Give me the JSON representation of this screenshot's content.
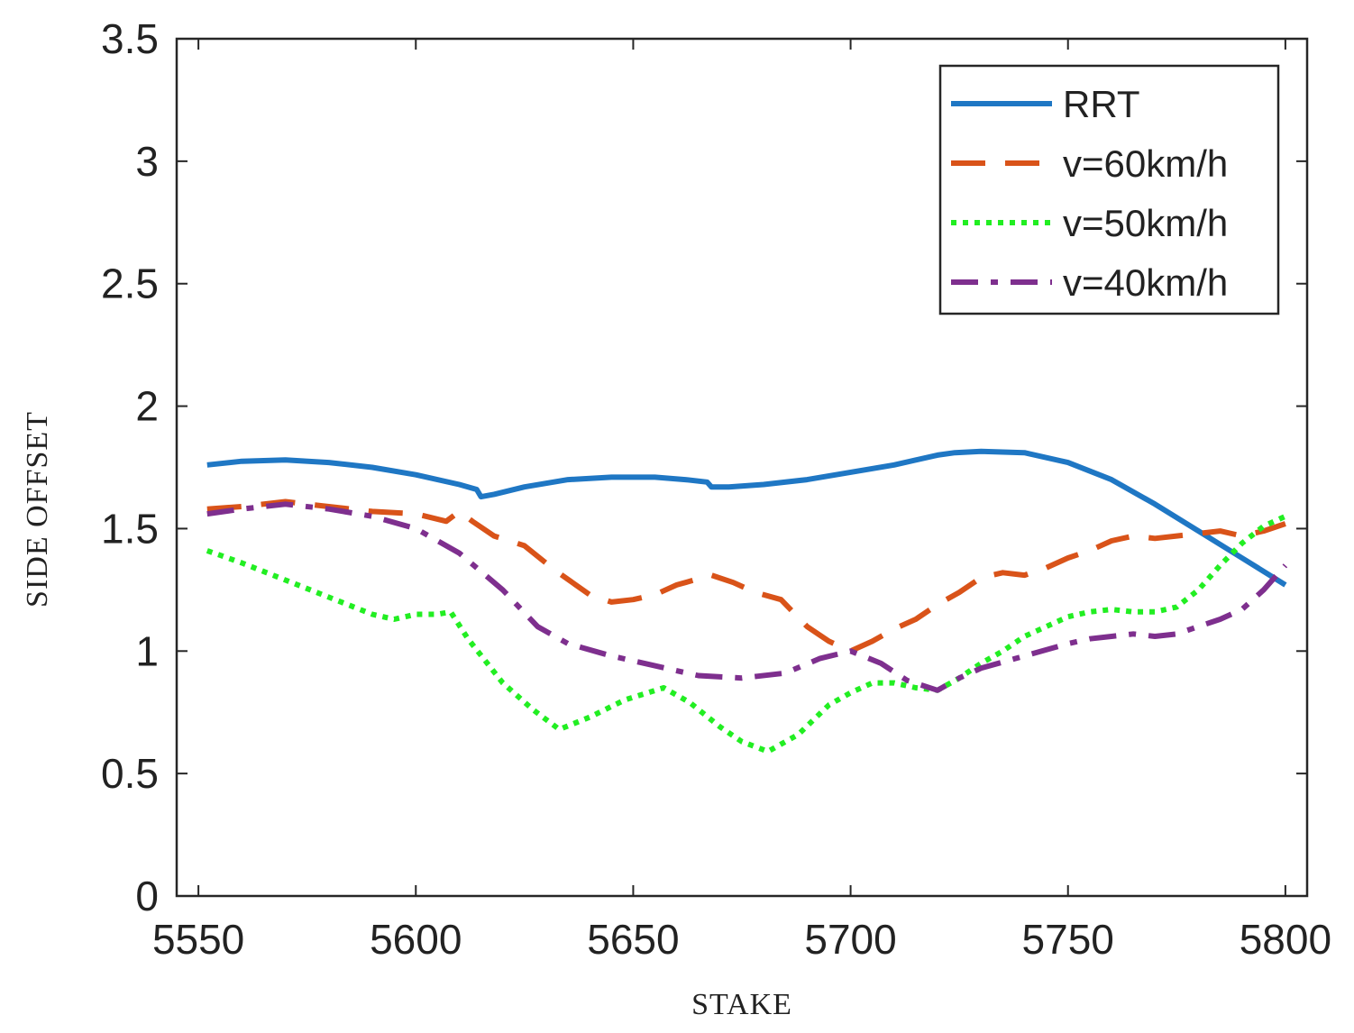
{
  "chart_data": {
    "type": "line",
    "title": "",
    "xlabel": "STAKE",
    "ylabel": "SIDE OFFSET",
    "xlim": [
      5545,
      5805
    ],
    "ylim": [
      0,
      3.5
    ],
    "xticks": [
      5550,
      5600,
      5650,
      5700,
      5750,
      5800
    ],
    "yticks": [
      0,
      0.5,
      1,
      1.5,
      2,
      2.5,
      3,
      3.5
    ],
    "xtick_labels": [
      "5550",
      "5600",
      "5650",
      "5700",
      "5750",
      "5800"
    ],
    "ytick_labels": [
      "0",
      "0.5",
      "1",
      "1.5",
      "2",
      "2.5",
      "3",
      "3.5"
    ],
    "grid": false,
    "legend_position": "top-right",
    "series": [
      {
        "name": "RRT",
        "color": "#1f77c4",
        "dash": "solid",
        "x": [
          5552,
          5560,
          5570,
          5580,
          5590,
          5600,
          5610,
          5614,
          5615,
          5618,
          5625,
          5635,
          5645,
          5655,
          5662,
          5667,
          5668,
          5672,
          5680,
          5690,
          5700,
          5710,
          5720,
          5724,
          5730,
          5740,
          5750,
          5760,
          5770,
          5780,
          5790,
          5800
        ],
        "y": [
          1.76,
          1.775,
          1.78,
          1.77,
          1.75,
          1.72,
          1.68,
          1.66,
          1.63,
          1.64,
          1.67,
          1.7,
          1.71,
          1.71,
          1.7,
          1.69,
          1.67,
          1.67,
          1.68,
          1.7,
          1.73,
          1.76,
          1.8,
          1.81,
          1.815,
          1.81,
          1.77,
          1.7,
          1.6,
          1.49,
          1.38,
          1.27
        ]
      },
      {
        "name": "v=60km/h",
        "color": "#d95319",
        "dash": "long",
        "x": [
          5552,
          5560,
          5570,
          5580,
          5590,
          5600,
          5607,
          5610,
          5613,
          5618,
          5625,
          5632,
          5640,
          5645,
          5650,
          5655,
          5660,
          5668,
          5673,
          5678,
          5684,
          5690,
          5695,
          5700,
          5705,
          5710,
          5715,
          5720,
          5725,
          5730,
          5735,
          5740,
          5745,
          5750,
          5755,
          5760,
          5765,
          5770,
          5775,
          5780,
          5785,
          5790,
          5795,
          5800
        ],
        "y": [
          1.58,
          1.59,
          1.61,
          1.59,
          1.57,
          1.56,
          1.53,
          1.57,
          1.53,
          1.47,
          1.43,
          1.33,
          1.23,
          1.2,
          1.21,
          1.23,
          1.27,
          1.31,
          1.28,
          1.24,
          1.21,
          1.1,
          1.04,
          1.0,
          1.04,
          1.09,
          1.13,
          1.19,
          1.24,
          1.3,
          1.32,
          1.31,
          1.34,
          1.38,
          1.41,
          1.45,
          1.47,
          1.46,
          1.47,
          1.48,
          1.49,
          1.47,
          1.49,
          1.52
        ]
      },
      {
        "name": "v=50km/h",
        "color": "#22ee22",
        "dash": "dotted",
        "x": [
          5552,
          5560,
          5570,
          5580,
          5590,
          5595,
          5600,
          5605,
          5608,
          5612,
          5620,
          5627,
          5633,
          5640,
          5648,
          5657,
          5663,
          5670,
          5675,
          5681,
          5688,
          5695,
          5700,
          5705,
          5710,
          5715,
          5720,
          5725,
          5730,
          5735,
          5740,
          5745,
          5750,
          5755,
          5760,
          5765,
          5770,
          5775,
          5780,
          5785,
          5790,
          5795,
          5800
        ],
        "y": [
          1.41,
          1.36,
          1.29,
          1.22,
          1.15,
          1.13,
          1.15,
          1.15,
          1.16,
          1.05,
          0.87,
          0.76,
          0.68,
          0.73,
          0.8,
          0.85,
          0.79,
          0.69,
          0.63,
          0.59,
          0.66,
          0.78,
          0.83,
          0.87,
          0.87,
          0.85,
          0.84,
          0.89,
          0.95,
          1.0,
          1.06,
          1.1,
          1.14,
          1.16,
          1.17,
          1.16,
          1.16,
          1.18,
          1.25,
          1.35,
          1.44,
          1.51,
          1.55
        ]
      },
      {
        "name": "v=40km/h",
        "color": "#7e2f8e",
        "dash": "dashdot",
        "x": [
          5552,
          5560,
          5570,
          5580,
          5590,
          5600,
          5610,
          5620,
          5628,
          5635,
          5645,
          5655,
          5665,
          5675,
          5685,
          5693,
          5700,
          5707,
          5713,
          5720,
          5725,
          5730,
          5740,
          5750,
          5755,
          5760,
          5765,
          5770,
          5775,
          5780,
          5785,
          5790,
          5795,
          5800
        ],
        "y": [
          1.56,
          1.58,
          1.6,
          1.58,
          1.55,
          1.5,
          1.4,
          1.25,
          1.1,
          1.03,
          0.98,
          0.94,
          0.9,
          0.89,
          0.91,
          0.97,
          1.0,
          0.95,
          0.88,
          0.84,
          0.89,
          0.93,
          0.98,
          1.03,
          1.05,
          1.06,
          1.07,
          1.06,
          1.07,
          1.1,
          1.13,
          1.17,
          1.25,
          1.35
        ]
      }
    ]
  }
}
